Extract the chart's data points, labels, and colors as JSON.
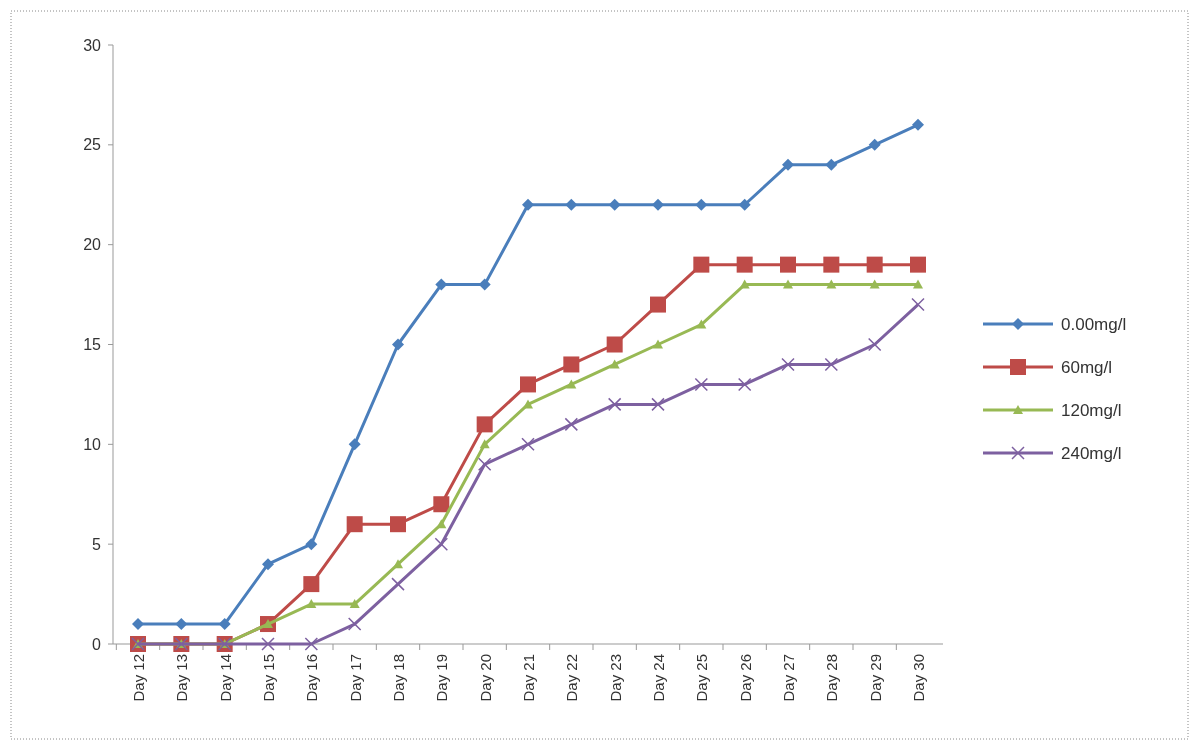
{
  "chart_data": {
    "type": "line",
    "categories": [
      "Day 12",
      "Day 13",
      "Day 14",
      "Day 15",
      "Day 16",
      "Day 17",
      "Day 18",
      "Day 19",
      "Day 20",
      "Day 21",
      "Day 22",
      "Day 23",
      "Day 24",
      "Day 25",
      "Day 26",
      "Day 27",
      "Day 28",
      "Day 29",
      "Day 30"
    ],
    "series": [
      {
        "name": "0.00mg/l",
        "color": "#4a7ebb",
        "marker": "diamond",
        "values": [
          1,
          1,
          1,
          4,
          5,
          10,
          15,
          18,
          18,
          22,
          22,
          22,
          22,
          22,
          22,
          24,
          24,
          25,
          26
        ]
      },
      {
        "name": "60mg/l",
        "color": "#be4b48",
        "marker": "square",
        "values": [
          0,
          0,
          0,
          1,
          3,
          6,
          6,
          7,
          11,
          13,
          14,
          15,
          17,
          19,
          19,
          19,
          19,
          19,
          19
        ]
      },
      {
        "name": "120mg/l",
        "color": "#98b954",
        "marker": "triangle",
        "values": [
          0,
          0,
          0,
          1,
          2,
          2,
          4,
          6,
          10,
          12,
          13,
          14,
          15,
          16,
          18,
          18,
          18,
          18,
          18
        ]
      },
      {
        "name": "240mg/l",
        "color": "#7d60a0",
        "marker": "cross",
        "values": [
          0,
          0,
          0,
          0,
          0,
          1,
          3,
          5,
          9,
          10,
          11,
          12,
          12,
          13,
          13,
          14,
          14,
          15,
          17
        ]
      }
    ],
    "ylim": [
      0,
      30
    ],
    "yticks": [
      0,
      5,
      10,
      15,
      20,
      25,
      30
    ],
    "grid": false,
    "legend": "right"
  }
}
